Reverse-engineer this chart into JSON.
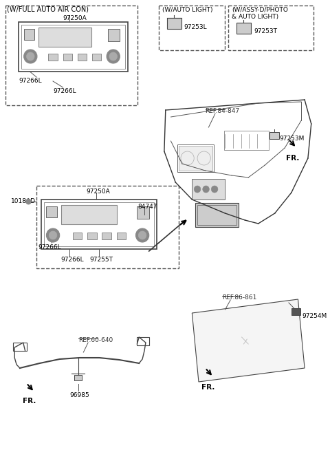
{
  "bg_color": "#ffffff",
  "line_color": "#333333",
  "dashed_box_color": "#555555",
  "ref_line_color": "#888888",
  "label_color": "#000000",
  "underline_color": "#555555",
  "fig_width": 4.8,
  "fig_height": 6.57,
  "dpi": 100,
  "labels": {
    "top_left_title": "(W/FULL AUTO AIR CON)",
    "part_97250A_top": "97250A",
    "part_97266L_top_left": "97266L",
    "part_97266L_top_bottom": "97266L",
    "box2_title_auto_light": "(W/AUTO LIGHT)",
    "box2_title_photo": "(W/ASSY-D/PHOTO",
    "box2_title_photo2": "& AUTO LIGHT)",
    "part_97253L": "97253L",
    "part_97253T": "97253T",
    "ref_84_847": "REF.84-847",
    "part_97253M": "97253M",
    "fr_top": "FR.",
    "part_1018AD": "1018AD",
    "part_97250A_mid": "97250A",
    "part_84747": "84747",
    "part_97266L_mid_left": "97266L",
    "part_97266L_mid_bottom": "97266L",
    "part_97255T": "97255T",
    "ref_86_861": "REF.86-861",
    "part_97254M": "97254M",
    "fr_bottom_right": "FR.",
    "ref_60_640": "REF.60-640",
    "part_96985": "96985",
    "fr_bottom_left": "FR."
  }
}
